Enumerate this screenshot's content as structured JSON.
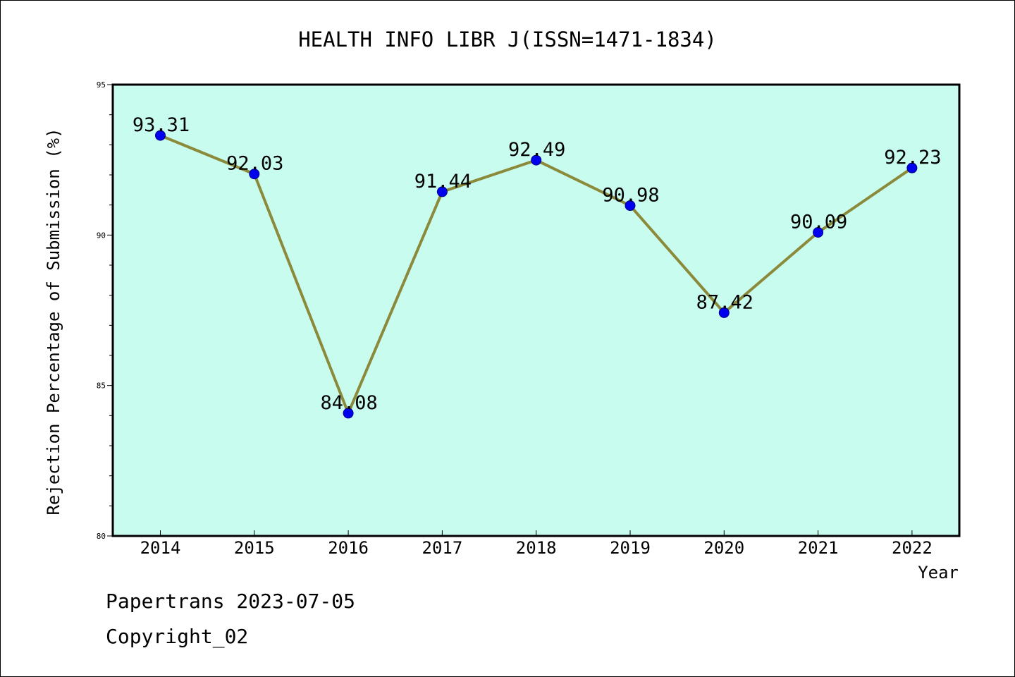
{
  "chart_data": {
    "type": "line",
    "title": "HEALTH INFO LIBR J(ISSN=1471-1834)",
    "xlabel": "Year",
    "ylabel": "Rejection Percentage of Submission (%)",
    "categories": [
      "2014",
      "2015",
      "2016",
      "2017",
      "2018",
      "2019",
      "2020",
      "2021",
      "2022"
    ],
    "values": [
      93.31,
      92.03,
      84.08,
      91.44,
      92.49,
      90.98,
      87.42,
      90.09,
      92.23
    ],
    "value_labels": [
      "93.31",
      "92.03",
      "84.08",
      "91.44",
      "92.49",
      "90.98",
      "87.42",
      "90.09",
      "92.23"
    ],
    "ylim": [
      80,
      95
    ],
    "yticks": [
      80,
      85,
      90,
      95
    ],
    "ytick_labels": [
      "80",
      "85",
      "90",
      "95"
    ],
    "grid": false,
    "colors": {
      "plot_background": "#c8fcee",
      "line": "#8b8a3a",
      "marker": "#0000ee",
      "marker_edge": "#00008b"
    }
  },
  "footer": {
    "line1": "Papertrans 2023-07-05",
    "line2": "Copyright_02"
  }
}
